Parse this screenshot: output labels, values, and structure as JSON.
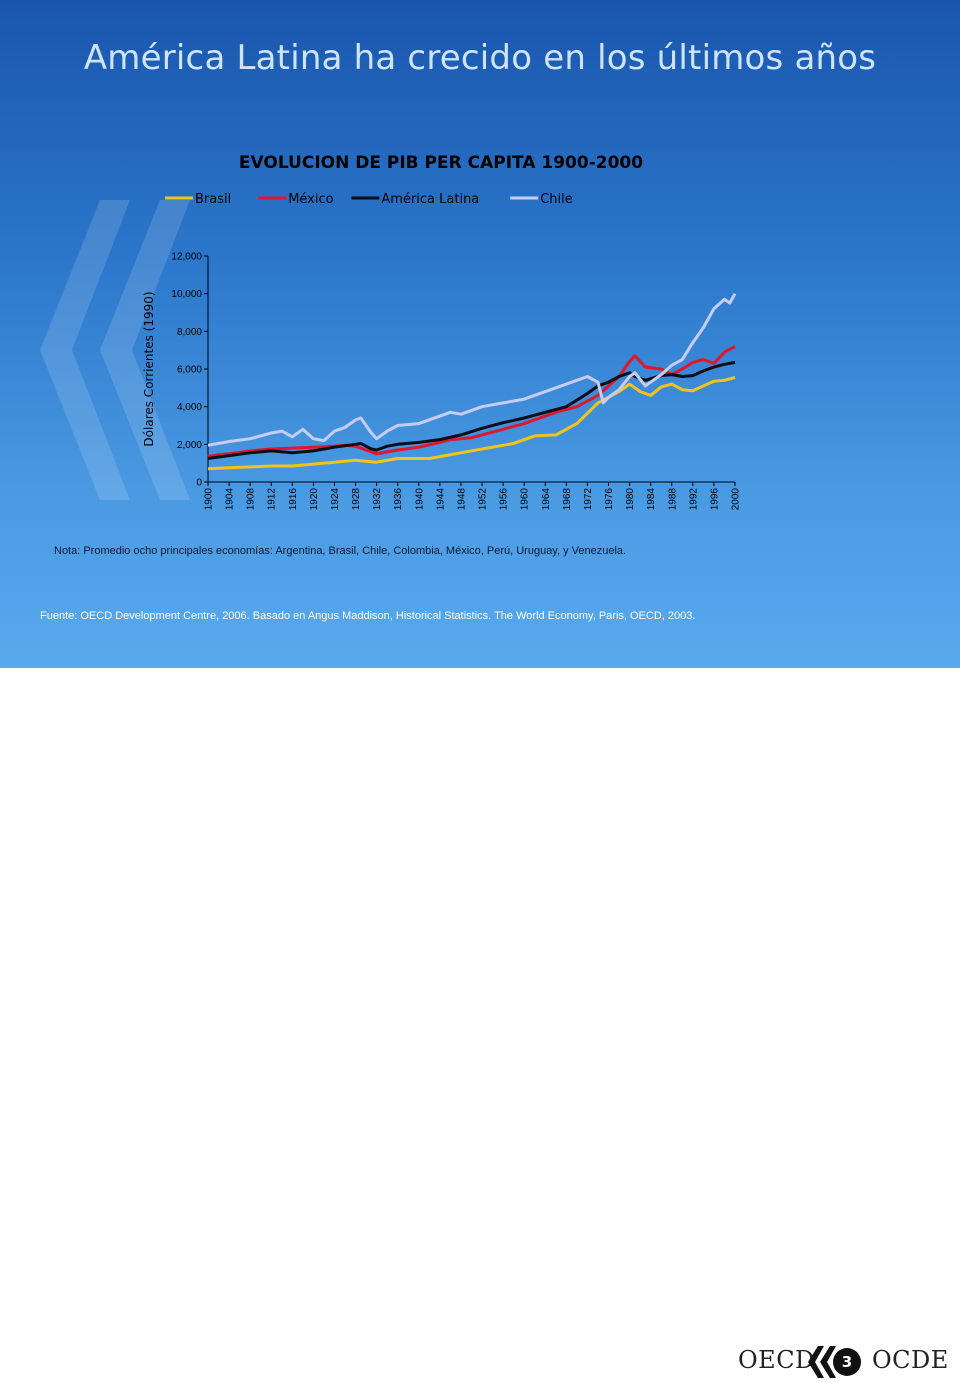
{
  "slide": {
    "title": "América Latina ha crecido en los últimos años",
    "note": "Nota: Promedio ocho principales economías: Argentina, Brasil, Chile,  Colombia, México, Perú, Uruguay,  y Venezuela.",
    "source": "Fuente: OECD  Development Centre,  2006.  Basado en   Angus Maddison, Historical Statistics. The World Economy, Paris, OECD, 2003."
  },
  "footer": {
    "logo_left": "OECD",
    "logo_right": "OCDE",
    "page_number": "3"
  },
  "chart_data": {
    "type": "line",
    "title": "EVOLUCION DE PIB PER CAPITA 1900-2000",
    "ylabel": "Dólares Corrientes (1990)",
    "xlabel": "",
    "ylim": [
      0,
      12000
    ],
    "xlim": [
      1900,
      2000
    ],
    "yticks": [
      "0",
      "2,000",
      "4,000",
      "6,000",
      "8,000",
      "10,000",
      "12,000"
    ],
    "xticks": [
      "1900",
      "1904",
      "1908",
      "1912",
      "1916",
      "1920",
      "1924",
      "1928",
      "1932",
      "1936",
      "1940",
      "1944",
      "1948",
      "1952",
      "1956",
      "1960",
      "1964",
      "1968",
      "1972",
      "1976",
      "1980",
      "1984",
      "1988",
      "1992",
      "1996",
      "2000"
    ],
    "legend_position": "top",
    "grid": false,
    "series": [
      {
        "name": "Brasil",
        "color": "#f2c417",
        "x": [
          1900,
          1904,
          1908,
          1912,
          1916,
          1920,
          1924,
          1928,
          1930,
          1932,
          1936,
          1940,
          1942,
          1944,
          1948,
          1952,
          1956,
          1958,
          1962,
          1966,
          1970,
          1974,
          1976,
          1978,
          1980,
          1982,
          1984,
          1986,
          1988,
          1990,
          1992,
          1994,
          1996,
          1998,
          2000
        ],
        "y": [
          700,
          760,
          800,
          850,
          850,
          950,
          1050,
          1150,
          1100,
          1050,
          1250,
          1250,
          1250,
          1350,
          1550,
          1750,
          1950,
          2050,
          2450,
          2500,
          3100,
          4200,
          4500,
          4800,
          5200,
          4800,
          4600,
          5050,
          5200,
          4900,
          4850,
          5100,
          5350,
          5400,
          5550
        ]
      },
      {
        "name": "México",
        "color": "#e0162b",
        "x": [
          1900,
          1902,
          1904,
          1908,
          1912,
          1916,
          1920,
          1924,
          1926,
          1928,
          1930,
          1932,
          1934,
          1936,
          1940,
          1944,
          1946,
          1948,
          1950,
          1952,
          1956,
          1960,
          1964,
          1966,
          1970,
          1974,
          1978,
          1980,
          1981,
          1983,
          1986,
          1988,
          1990,
          1992,
          1994,
          1996,
          1998,
          2000
        ],
        "y": [
          1350,
          1450,
          1500,
          1650,
          1750,
          1800,
          1850,
          1900,
          1950,
          1900,
          1700,
          1500,
          1600,
          1700,
          1850,
          2100,
          2250,
          2300,
          2350,
          2500,
          2800,
          3100,
          3500,
          3700,
          4000,
          4600,
          5600,
          6400,
          6700,
          6100,
          6000,
          5700,
          6000,
          6350,
          6500,
          6300,
          6900,
          7200
        ]
      },
      {
        "name": "América Latina",
        "color": "#0d0d18",
        "x": [
          1900,
          1904,
          1908,
          1912,
          1916,
          1920,
          1924,
          1928,
          1929,
          1931,
          1932,
          1934,
          1936,
          1940,
          1944,
          1948,
          1952,
          1956,
          1960,
          1964,
          1968,
          1972,
          1974,
          1976,
          1978,
          1980,
          1981,
          1983,
          1986,
          1988,
          1990,
          1992,
          1994,
          1996,
          1998,
          2000
        ],
        "y": [
          1250,
          1400,
          1550,
          1650,
          1550,
          1650,
          1850,
          2000,
          2050,
          1750,
          1700,
          1900,
          2000,
          2100,
          2250,
          2500,
          2850,
          3150,
          3400,
          3700,
          4000,
          4700,
          5100,
          5300,
          5600,
          5800,
          5600,
          5400,
          5650,
          5700,
          5600,
          5650,
          5900,
          6100,
          6250,
          6350
        ]
      },
      {
        "name": "Chile",
        "color": "#c6cdf0",
        "x": [
          1900,
          1904,
          1908,
          1912,
          1914,
          1916,
          1918,
          1920,
          1922,
          1924,
          1926,
          1928,
          1929,
          1931,
          1932,
          1934,
          1936,
          1940,
          1944,
          1946,
          1948,
          1952,
          1956,
          1960,
          1964,
          1968,
          1970,
          1972,
          1974,
          1975,
          1976,
          1978,
          1980,
          1981,
          1983,
          1986,
          1988,
          1990,
          1992,
          1994,
          1996,
          1998,
          1999,
          2000
        ],
        "y": [
          1950,
          2150,
          2300,
          2600,
          2700,
          2400,
          2800,
          2300,
          2200,
          2700,
          2900,
          3300,
          3400,
          2600,
          2300,
          2700,
          3000,
          3100,
          3500,
          3700,
          3600,
          4000,
          4200,
          4400,
          4800,
          5200,
          5400,
          5600,
          5300,
          4200,
          4500,
          4900,
          5600,
          5800,
          5100,
          5700,
          6200,
          6500,
          7400,
          8200,
          9200,
          9700,
          9500,
          10000
        ]
      }
    ]
  }
}
